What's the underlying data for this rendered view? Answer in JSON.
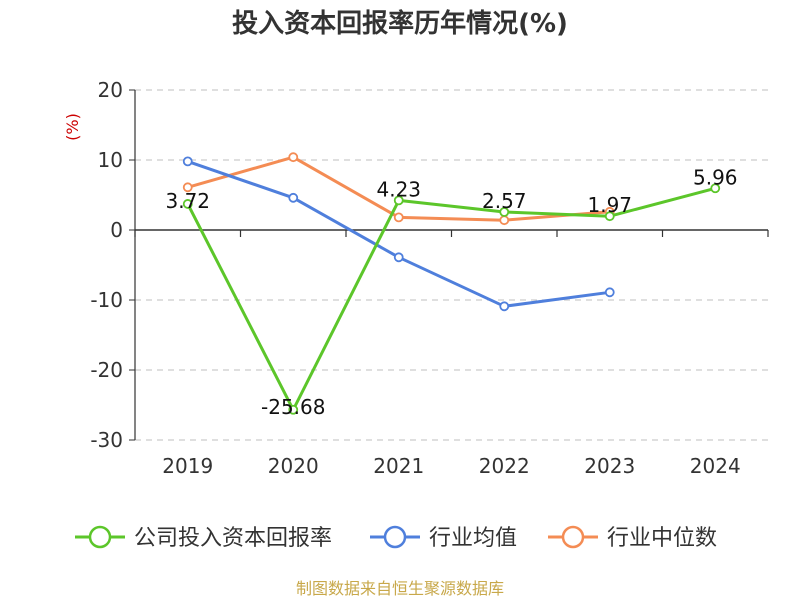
{
  "chart_data": {
    "type": "line",
    "title": "投入资本回报率历年情况(%)",
    "ylabel": "(%)",
    "categories": [
      "2019",
      "2020",
      "2021",
      "2022",
      "2023",
      "2024"
    ],
    "ylim": [
      -30,
      20
    ],
    "yticks": [
      "20",
      "10",
      "0",
      "-10",
      "-20",
      "-30"
    ],
    "grid": true,
    "legend_position": "bottom",
    "series": [
      {
        "name": "公司投入资本回报率",
        "color": "#5cc62a",
        "values": [
          3.72,
          -25.68,
          4.23,
          2.57,
          1.97,
          5.96
        ],
        "labels": [
          "3.72",
          "-25.68",
          "4.23",
          "2.57",
          "1.97",
          "5.96"
        ]
      },
      {
        "name": "行业均值",
        "color": "#4f7fdc",
        "values": [
          9.8,
          4.6,
          -3.9,
          -10.9,
          -8.9,
          null
        ]
      },
      {
        "name": "行业中位数",
        "color": "#f48c54",
        "values": [
          6.1,
          10.4,
          1.8,
          1.4,
          2.6,
          null
        ]
      }
    ]
  },
  "source": "制图数据来自恒生聚源数据库"
}
